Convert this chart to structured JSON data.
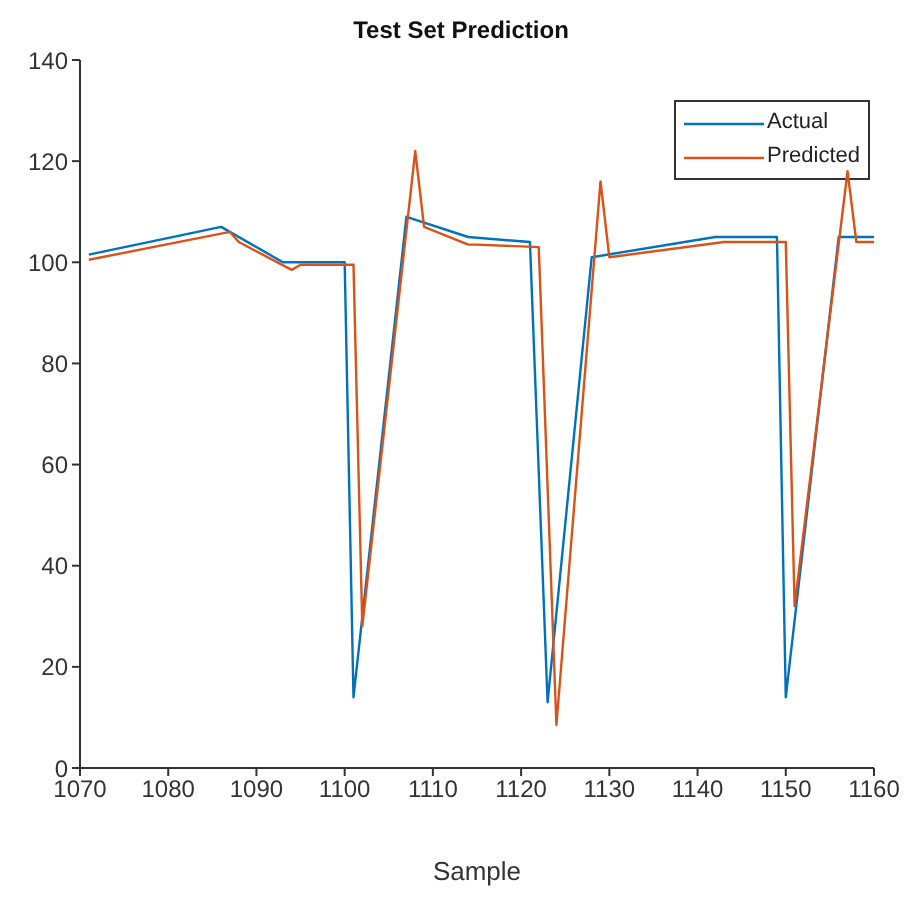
{
  "chart_data": {
    "type": "line",
    "title": "Test Set Prediction",
    "xlabel": "Sample",
    "xlim": [
      1070,
      1160
    ],
    "xticks": [
      1070,
      1080,
      1090,
      1100,
      1110,
      1120,
      1130,
      1140,
      1150,
      1160
    ],
    "ylim": [
      0,
      140
    ],
    "yticks": [
      0,
      20,
      40,
      60,
      80,
      100,
      120,
      140
    ],
    "grid": false,
    "legend": "top right",
    "marker": "none",
    "line_style": "solid",
    "series": [
      {
        "name": "Actual",
        "color": "#0072bd",
        "x": [
          1071,
          1086,
          1093,
          1100,
          1101,
          1107,
          1114,
          1121,
          1123,
          1128,
          1142,
          1149,
          1150,
          1156,
          1160
        ],
        "values": [
          101.5,
          107,
          100,
          100,
          14,
          109,
          105,
          104,
          13,
          101,
          105,
          105,
          14,
          105,
          105
        ]
      },
      {
        "name": "Predicted",
        "color": "#d95319",
        "x": [
          1071,
          1087,
          1088,
          1094,
          1095,
          1101,
          1102,
          1108,
          1109,
          1114,
          1115,
          1122,
          1124,
          1129,
          1130,
          1143,
          1150,
          1151,
          1157,
          1158,
          1160
        ],
        "values": [
          100.5,
          106,
          104,
          98.5,
          99.5,
          99.5,
          28,
          122,
          107,
          103.5,
          103.5,
          103,
          8.5,
          116,
          101,
          104,
          104,
          32,
          118,
          104,
          104
        ]
      }
    ]
  }
}
